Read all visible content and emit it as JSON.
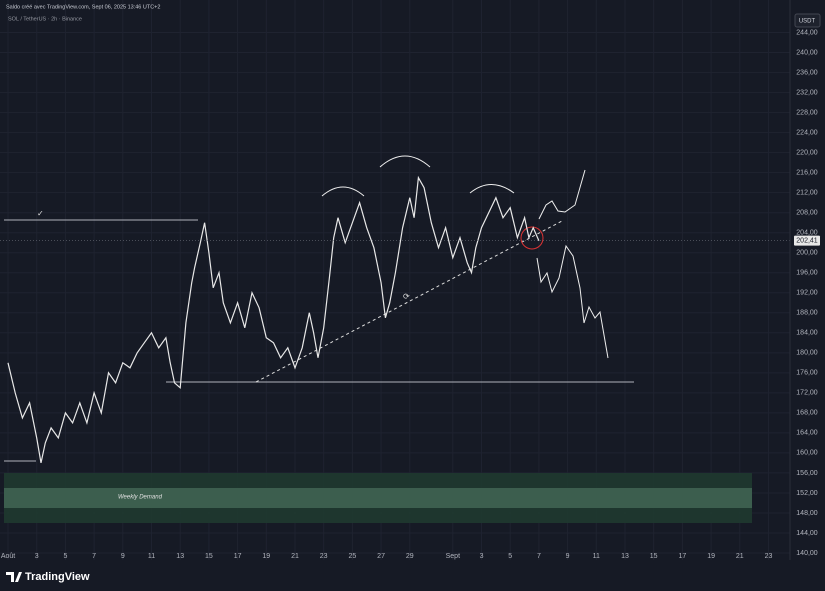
{
  "chart_data": {
    "type": "line",
    "header": "Saldo créé avec TradingView.com, Sept 06, 2025 13:46 UTC+2",
    "subtitle": "SOL / TetherUS · 2h · Binance",
    "currency": "USDT",
    "zone_label": "Weekly Demand",
    "brand": "TradingView",
    "current_price": {
      "value": 202.41,
      "label": "202,41"
    },
    "xlim": [
      -0.56,
      54.5
    ],
    "ylim": [
      138.6,
      250.5
    ],
    "grid": true,
    "xticks": [
      {
        "value": 0,
        "label": "Août"
      },
      {
        "value": 2,
        "label": "3"
      },
      {
        "value": 4,
        "label": "5"
      },
      {
        "value": 6,
        "label": "7"
      },
      {
        "value": 8,
        "label": "9"
      },
      {
        "value": 10,
        "label": "11"
      },
      {
        "value": 12,
        "label": "13"
      },
      {
        "value": 14,
        "label": "15"
      },
      {
        "value": 16,
        "label": "17"
      },
      {
        "value": 18,
        "label": "19"
      },
      {
        "value": 20,
        "label": "21"
      },
      {
        "value": 22,
        "label": "23"
      },
      {
        "value": 24,
        "label": "25"
      },
      {
        "value": 26,
        "label": "27"
      },
      {
        "value": 28,
        "label": "29"
      },
      {
        "value": 31,
        "label": "Sept"
      },
      {
        "value": 33,
        "label": "3"
      },
      {
        "value": 35,
        "label": "5"
      },
      {
        "value": 37,
        "label": "7"
      },
      {
        "value": 39,
        "label": "9"
      },
      {
        "value": 41,
        "label": "11"
      },
      {
        "value": 43,
        "label": "13"
      },
      {
        "value": 45,
        "label": "15"
      },
      {
        "value": 47,
        "label": "17"
      },
      {
        "value": 49,
        "label": "19"
      },
      {
        "value": 51,
        "label": "21"
      },
      {
        "value": 53,
        "label": "23"
      }
    ],
    "yticks": [
      {
        "value": 140,
        "label": "140,00"
      },
      {
        "value": 144,
        "label": "144,00"
      },
      {
        "value": 148,
        "label": "148,00"
      },
      {
        "value": 152,
        "label": "152,00"
      },
      {
        "value": 156,
        "label": "156,00"
      },
      {
        "value": 160,
        "label": "160,00"
      },
      {
        "value": 164,
        "label": "164,00"
      },
      {
        "value": 168,
        "label": "168,00"
      },
      {
        "value": 172,
        "label": "172,00"
      },
      {
        "value": 176,
        "label": "176,00"
      },
      {
        "value": 180,
        "label": "180,00"
      },
      {
        "value": 184,
        "label": "184,00"
      },
      {
        "value": 188,
        "label": "188,00"
      },
      {
        "value": 192,
        "label": "192,00"
      },
      {
        "value": 196,
        "label": "196,00"
      },
      {
        "value": 200,
        "label": "200,00"
      },
      {
        "value": 204,
        "label": "204,00"
      },
      {
        "value": 208,
        "label": "208,00"
      },
      {
        "value": 212,
        "label": "212,00"
      },
      {
        "value": 216,
        "label": "216,00"
      },
      {
        "value": 220,
        "label": "220,00"
      },
      {
        "value": 224,
        "label": "224,00"
      },
      {
        "value": 228,
        "label": "228,00"
      },
      {
        "value": 232,
        "label": "232,00"
      },
      {
        "value": 236,
        "label": "236,00"
      },
      {
        "value": 240,
        "label": "240,00"
      },
      {
        "value": 244,
        "label": "244,00"
      }
    ],
    "series": [
      {
        "name": "SOL / TetherUS",
        "color": "#e8e8e8",
        "x": [
          0,
          0.5,
          1,
          1.5,
          2,
          2.3,
          2.6,
          3,
          3.5,
          4,
          4.5,
          5,
          5.5,
          6,
          6.5,
          7,
          7.5,
          8,
          8.5,
          9,
          9.5,
          10,
          10.5,
          11,
          11.3,
          11.6,
          12,
          12.4,
          12.8,
          13,
          13.4,
          13.7,
          14,
          14.3,
          14.7,
          15,
          15.5,
          16,
          16.5,
          17,
          17.5,
          18,
          18.5,
          19,
          19.5,
          20,
          20.5,
          21,
          21.3,
          21.6,
          22,
          22.4,
          22.7,
          23,
          23.5,
          24,
          24.5,
          25,
          25.5,
          26,
          26.3,
          26.6,
          27,
          27.5,
          28,
          28.3,
          28.6,
          29,
          29.5,
          30,
          30.5,
          31,
          31.5,
          32,
          32.3,
          32.6,
          33,
          33.5,
          34,
          34.5,
          35,
          35.5,
          36,
          36.3,
          36.6,
          37
        ],
        "values": [
          178,
          172,
          167,
          170,
          163,
          158,
          162,
          165,
          163,
          168,
          166,
          170,
          166,
          172,
          168,
          176,
          174,
          178,
          177,
          180,
          182,
          184,
          181,
          183,
          178,
          174,
          173,
          186,
          194,
          197,
          202,
          206,
          200,
          193,
          196,
          190,
          186,
          190,
          185,
          192,
          189,
          183,
          182,
          179,
          181,
          177,
          181,
          188,
          184,
          179,
          185,
          195,
          203,
          207,
          202,
          206,
          210,
          205,
          201,
          194,
          187,
          190,
          196,
          205,
          211,
          207,
          215,
          213,
          206,
          201,
          205,
          199,
          203,
          198,
          196,
          201,
          205,
          208,
          211,
          207,
          209,
          203,
          207,
          203,
          205,
          202.41
        ]
      }
    ]
  }
}
